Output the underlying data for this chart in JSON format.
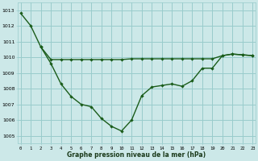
{
  "line1_x": [
    0,
    1,
    2,
    3,
    4,
    5,
    6,
    7,
    8,
    9,
    10,
    11,
    12,
    13,
    14,
    15,
    16,
    17,
    18,
    19,
    20,
    21,
    22,
    23
  ],
  "line1_y": [
    1012.8,
    1012.0,
    1010.65,
    1009.6,
    1008.3,
    1007.5,
    1007.0,
    1006.85,
    1006.1,
    1005.6,
    1005.3,
    1006.0,
    1007.55,
    1008.1,
    1008.2,
    1008.3,
    1008.15,
    1008.5,
    1009.3,
    1009.3,
    1010.1,
    1010.2,
    1010.15,
    1010.1
  ],
  "line2_x": [
    2,
    3,
    4,
    5,
    6,
    7,
    8,
    9,
    10,
    11,
    12,
    13,
    14,
    15,
    16,
    17,
    18,
    19,
    20,
    21,
    22,
    23
  ],
  "line2_y": [
    1010.65,
    1009.85,
    1009.85,
    1009.85,
    1009.85,
    1009.85,
    1009.85,
    1009.85,
    1009.85,
    1009.9,
    1009.9,
    1009.9,
    1009.9,
    1009.9,
    1009.9,
    1009.9,
    1009.9,
    1009.9,
    1010.1,
    1010.2,
    1010.15,
    1010.1
  ],
  "bg_color": "#cce8e8",
  "grid_color": "#99cccc",
  "line_color": "#1a5c1a",
  "ylabel_values": [
    1005,
    1006,
    1007,
    1008,
    1009,
    1010,
    1011,
    1012,
    1013
  ],
  "xlabel": "Graphe pression niveau de la mer (hPa)",
  "ylim": [
    1004.5,
    1013.5
  ],
  "xlim": [
    -0.3,
    23.3
  ]
}
